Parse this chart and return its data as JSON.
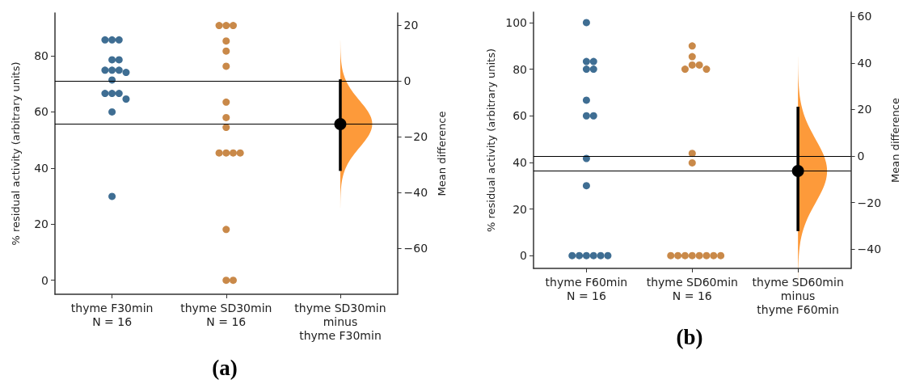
{
  "chart_data": [
    {
      "type": "scatter",
      "annotations": [
        "(a)"
      ],
      "categories": [
        "thyme F30min\nN = 16",
        "thyme SD30min\nN = 16",
        "thyme SD30min\nminus\nthyme F30min"
      ],
      "ylabel": "% residual activity (arbitrary units)",
      "y2label": "Mean difference",
      "ylim": [
        -5,
        95.3
      ],
      "yticks": [
        0,
        20,
        40,
        60,
        80
      ],
      "y2lim": [
        -76.5,
        24.3
      ],
      "y2ticks": [
        {
          "value": -60,
          "label": "−60"
        },
        {
          "value": -40,
          "label": "−40"
        },
        {
          "value": -20,
          "label": "−20"
        },
        0,
        20
      ],
      "marker": "circle",
      "series": [
        {
          "color": "#3f6e93",
          "x": [
            "thyme F30min\nN = 16",
            "thyme F30min\nN = 16",
            "thyme F30min\nN = 16",
            "thyme F30min\nN = 16",
            "thyme F30min\nN = 16",
            "thyme F30min\nN = 16",
            "thyme F30min\nN = 16",
            "thyme F30min\nN = 16",
            "thyme F30min\nN = 16",
            "thyme F30min\nN = 16",
            "thyme F30min\nN = 16",
            "thyme F30min\nN = 16",
            "thyme F30min\nN = 16",
            "thyme F30min\nN = 16",
            "thyme F30min\nN = 16",
            "thyme F30min\nN = 16"
          ],
          "values": [
            85.7,
            85.7,
            85.7,
            78.6,
            78.6,
            74.9,
            74.9,
            74.9,
            74.1,
            71.4,
            66.6,
            66.6,
            66.6,
            64.6,
            60,
            29.9
          ]
        },
        {
          "color": "#c98949",
          "x": [
            "thyme SD30min\nN = 16",
            "thyme SD30min\nN = 16",
            "thyme SD30min\nN = 16",
            "thyme SD30min\nN = 16",
            "thyme SD30min\nN = 16",
            "thyme SD30min\nN = 16",
            "thyme SD30min\nN = 16",
            "thyme SD30min\nN = 16",
            "thyme SD30min\nN = 16",
            "thyme SD30min\nN = 16",
            "thyme SD30min\nN = 16",
            "thyme SD30min\nN = 16",
            "thyme SD30min\nN = 16",
            "thyme SD30min\nN = 16",
            "thyme SD30min\nN = 16",
            "thyme SD30min\nN = 16"
          ],
          "values": [
            90.8,
            90.8,
            90.8,
            85.3,
            81.7,
            76.3,
            63.5,
            58,
            54.5,
            45.4,
            45.4,
            45.4,
            45.4,
            18.1,
            0,
            0
          ]
        },
        {
          "color": "#000000",
          "axis": "y2",
          "x": [
            "thyme SD30min\nminus\nthyme F30min"
          ],
          "values": [
            -15.5
          ],
          "errors": [
            [
              -32.3,
              0.5
            ]
          ]
        }
      ],
      "ref_lines": [
        {
          "axis": "y2",
          "value": 0
        },
        {
          "axis": "y2",
          "value": -15.5
        }
      ]
    },
    {
      "type": "scatter",
      "annotations": [
        "(b)"
      ],
      "categories": [
        "thyme F60min\nN = 16",
        "thyme SD60min\nN = 16",
        "thyme SD60min\nminus\nthyme F60min"
      ],
      "ylabel": "% residual activity (arbitrary units)",
      "y2label": "Mean difference",
      "ylim": [
        -5.5,
        104.5
      ],
      "yticks": [
        0,
        20,
        40,
        60,
        80,
        100
      ],
      "y2lim": [
        -48.2,
        61.8
      ],
      "y2ticks": [
        {
          "value": -40,
          "label": "−40"
        },
        {
          "value": -20,
          "label": "−20"
        },
        0,
        20,
        40,
        60
      ],
      "marker": "circle",
      "series": [
        {
          "color": "#3f6e93",
          "x": [
            "thyme F60min\nN = 16",
            "thyme F60min\nN = 16",
            "thyme F60min\nN = 16",
            "thyme F60min\nN = 16",
            "thyme F60min\nN = 16",
            "thyme F60min\nN = 16",
            "thyme F60min\nN = 16",
            "thyme F60min\nN = 16",
            "thyme F60min\nN = 16",
            "thyme F60min\nN = 16",
            "thyme F60min\nN = 16",
            "thyme F60min\nN = 16",
            "thyme F60min\nN = 16",
            "thyme F60min\nN = 16",
            "thyme F60min\nN = 16",
            "thyme F60min\nN = 16"
          ],
          "values": [
            100,
            83.3,
            83.3,
            80,
            80,
            66.7,
            60,
            60,
            41.7,
            30,
            0,
            0,
            0,
            0,
            0,
            0
          ]
        },
        {
          "color": "#c98949",
          "x": [
            "thyme SD60min\nN = 16",
            "thyme SD60min\nN = 16",
            "thyme SD60min\nN = 16",
            "thyme SD60min\nN = 16",
            "thyme SD60min\nN = 16",
            "thyme SD60min\nN = 16",
            "thyme SD60min\nN = 16",
            "thyme SD60min\nN = 16",
            "thyme SD60min\nN = 16",
            "thyme SD60min\nN = 16",
            "thyme SD60min\nN = 16",
            "thyme SD60min\nN = 16",
            "thyme SD60min\nN = 16",
            "thyme SD60min\nN = 16",
            "thyme SD60min\nN = 16",
            "thyme SD60min\nN = 16"
          ],
          "values": [
            90,
            85.4,
            81.8,
            81.8,
            80,
            80,
            43.9,
            39.8,
            0,
            0,
            0,
            0,
            0,
            0,
            0,
            0
          ]
        },
        {
          "color": "#000000",
          "axis": "y2",
          "x": [
            "thyme SD60min\nminus\nthyme F60min"
          ],
          "values": [
            -6.4
          ],
          "errors": [
            [
              -32.2,
              21.2
            ]
          ]
        }
      ],
      "ref_lines": [
        {
          "axis": "y2",
          "value": 0
        },
        {
          "axis": "y2",
          "value": -6.4
        }
      ]
    }
  ]
}
